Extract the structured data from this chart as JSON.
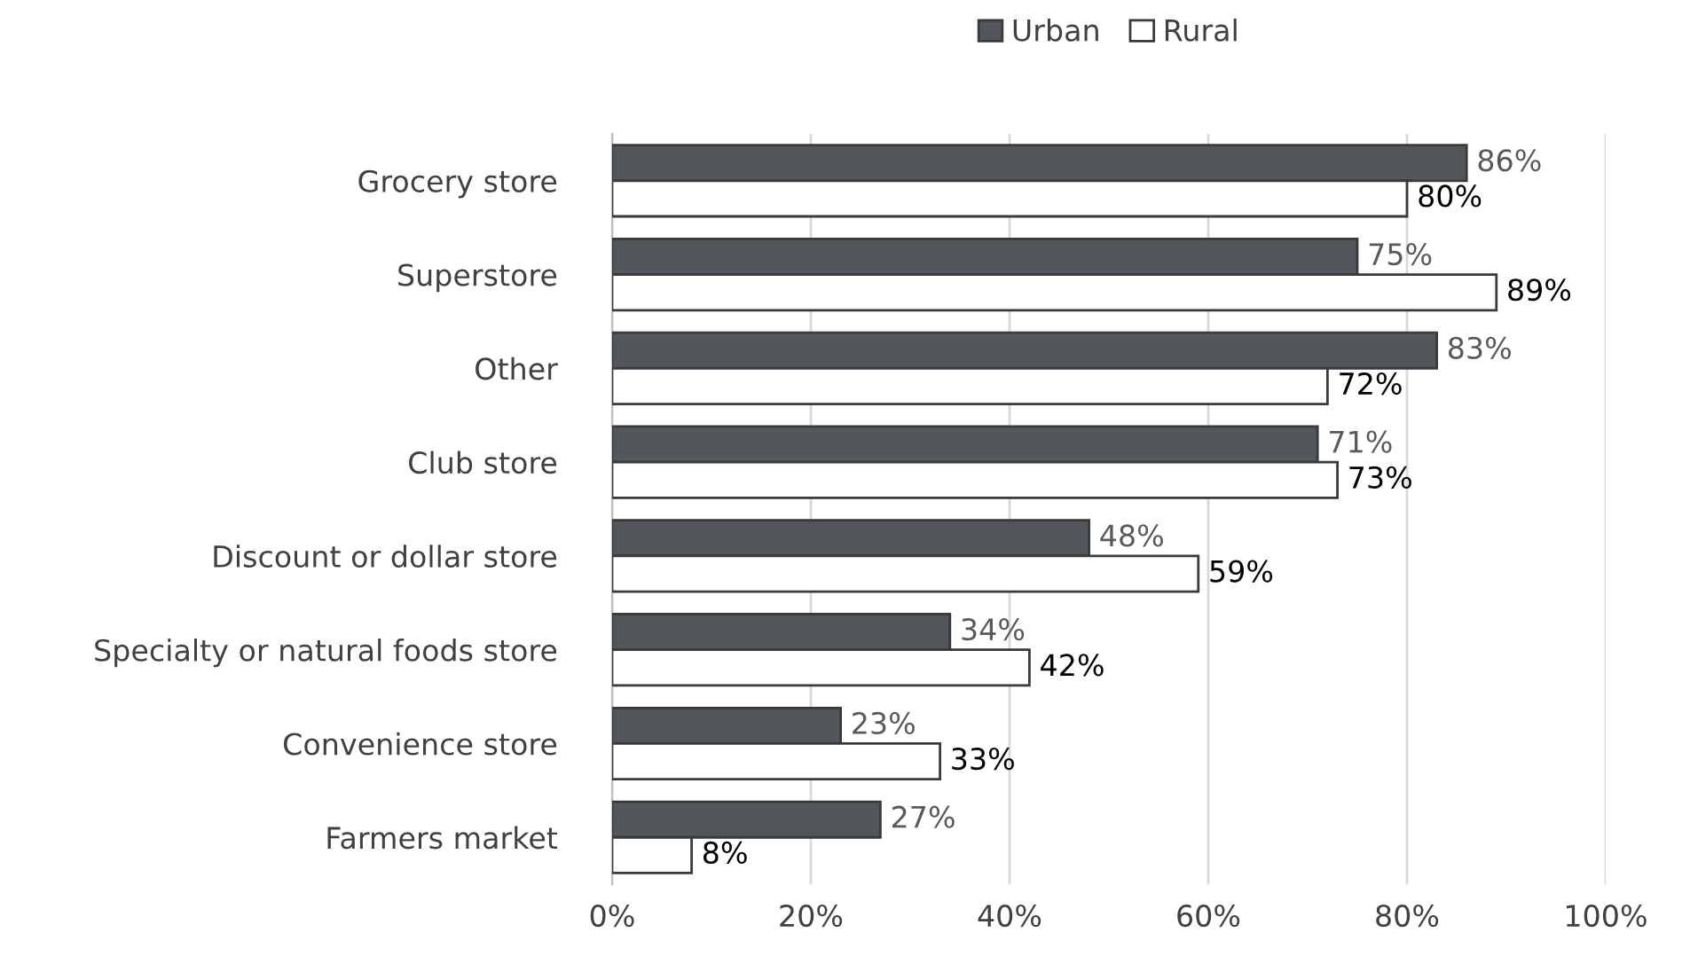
{
  "chart_data": {
    "type": "bar",
    "orientation": "horizontal",
    "categories": [
      "Grocery store",
      "Superstore",
      "Other",
      "Club store",
      "Discount or dollar store",
      "Specialty or natural foods store",
      "Convenience store",
      "Farmers market"
    ],
    "series": [
      {
        "name": "Urban",
        "color": "#53565a",
        "values": [
          86,
          75,
          83,
          71,
          48,
          34,
          23,
          27
        ],
        "value_labels": [
          "86%",
          "75%",
          "83%",
          "71%",
          "48%",
          "34%",
          "23%",
          "27%"
        ]
      },
      {
        "name": "Rural",
        "color": "#ffffff",
        "values": [
          80,
          89,
          72,
          73,
          59,
          42,
          33,
          8
        ],
        "value_labels": [
          "80%",
          "89%",
          "72%",
          "73%",
          "59%",
          "42%",
          "33%",
          "8%"
        ]
      }
    ],
    "xlim": [
      0,
      100
    ],
    "xticks": [
      {
        "value": 0,
        "label": "0%"
      },
      {
        "value": 20,
        "label": "20%"
      },
      {
        "value": 40,
        "label": "40%"
      },
      {
        "value": 60,
        "label": "60%"
      },
      {
        "value": 80,
        "label": "80%"
      },
      {
        "value": 100,
        "label": "100%"
      }
    ],
    "grid": "x",
    "legend": "top"
  }
}
